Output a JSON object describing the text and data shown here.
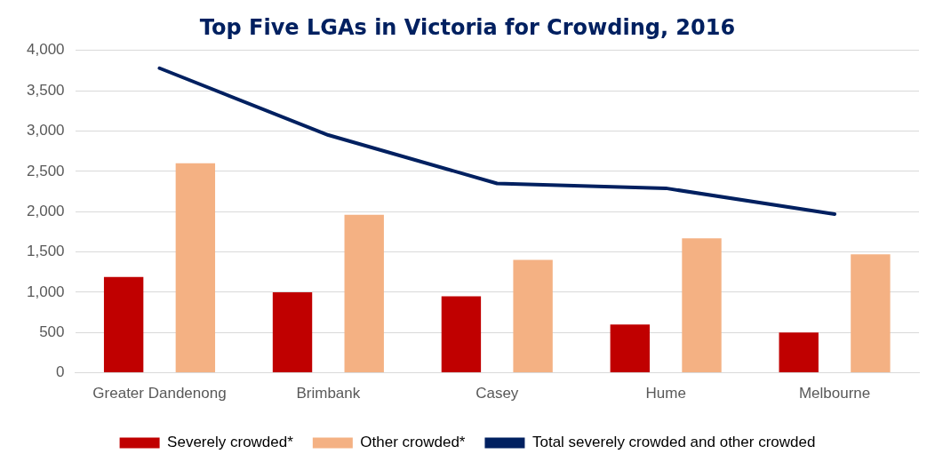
{
  "chart_data": {
    "type": "bar",
    "title": "Top Five LGAs in Victoria for Crowding, 2016",
    "categories": [
      "Greater Dandenong",
      "Brimbank",
      "Casey",
      "Hume",
      "Melbourne"
    ],
    "series": [
      {
        "name": "Severely crowded*",
        "color": "#c00000",
        "values": [
          1190,
          1000,
          950,
          600,
          500
        ]
      },
      {
        "name": "Other crowded*",
        "color": "#f4b183",
        "values": [
          2600,
          1960,
          1400,
          1670,
          1470
        ]
      },
      {
        "name": "Total severely crowded and other crowded",
        "type": "line",
        "color": "#002060",
        "values": [
          3780,
          2950,
          2350,
          2290,
          1970
        ]
      }
    ],
    "ylim": [
      0,
      4000
    ],
    "yticks": [
      0,
      500,
      {
        "value": 1000,
        "label": "1,000"
      },
      {
        "value": 1500,
        "label": "1,500"
      },
      {
        "value": 2000,
        "label": "2,000"
      },
      {
        "value": 2500,
        "label": "2,500"
      },
      {
        "value": 3000,
        "label": "3,000"
      },
      {
        "value": 3500,
        "label": "3,500"
      },
      {
        "value": 4000,
        "label": "4,000"
      }
    ],
    "grid": "y",
    "legend": "bottom",
    "marker": "none"
  }
}
